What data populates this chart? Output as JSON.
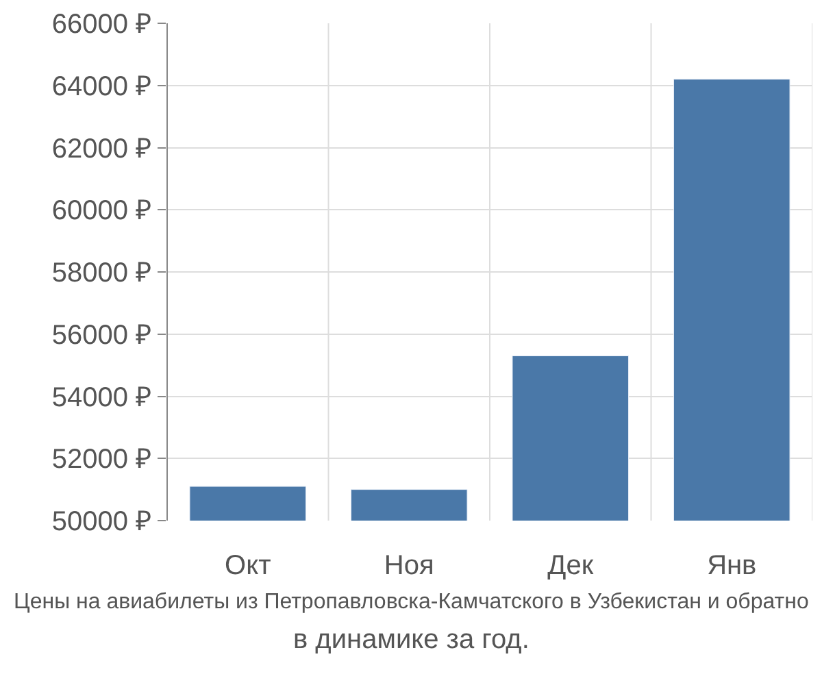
{
  "chart_data": {
    "type": "bar",
    "categories": [
      "Окт",
      "Ноя",
      "Дек",
      "Янв"
    ],
    "values": [
      51100,
      51000,
      55300,
      64200
    ],
    "color": "#4a78a8",
    "ylim": [
      50000,
      66000
    ],
    "yticks": [
      {
        "value": 50000,
        "label": "50000 ₽"
      },
      {
        "value": 52000,
        "label": "52000 ₽"
      },
      {
        "value": 54000,
        "label": "54000 ₽"
      },
      {
        "value": 56000,
        "label": "56000 ₽"
      },
      {
        "value": 58000,
        "label": "58000 ₽"
      },
      {
        "value": 60000,
        "label": "60000 ₽"
      },
      {
        "value": 62000,
        "label": "62000 ₽"
      },
      {
        "value": 64000,
        "label": "64000 ₽"
      },
      {
        "value": 66000,
        "label": "66000 ₽"
      }
    ],
    "grid": true,
    "annotations": [
      "Цены на авиабилеты из Петропавловска-Камчатского в Узбекистан и обратно",
      "в динамике за год."
    ]
  }
}
